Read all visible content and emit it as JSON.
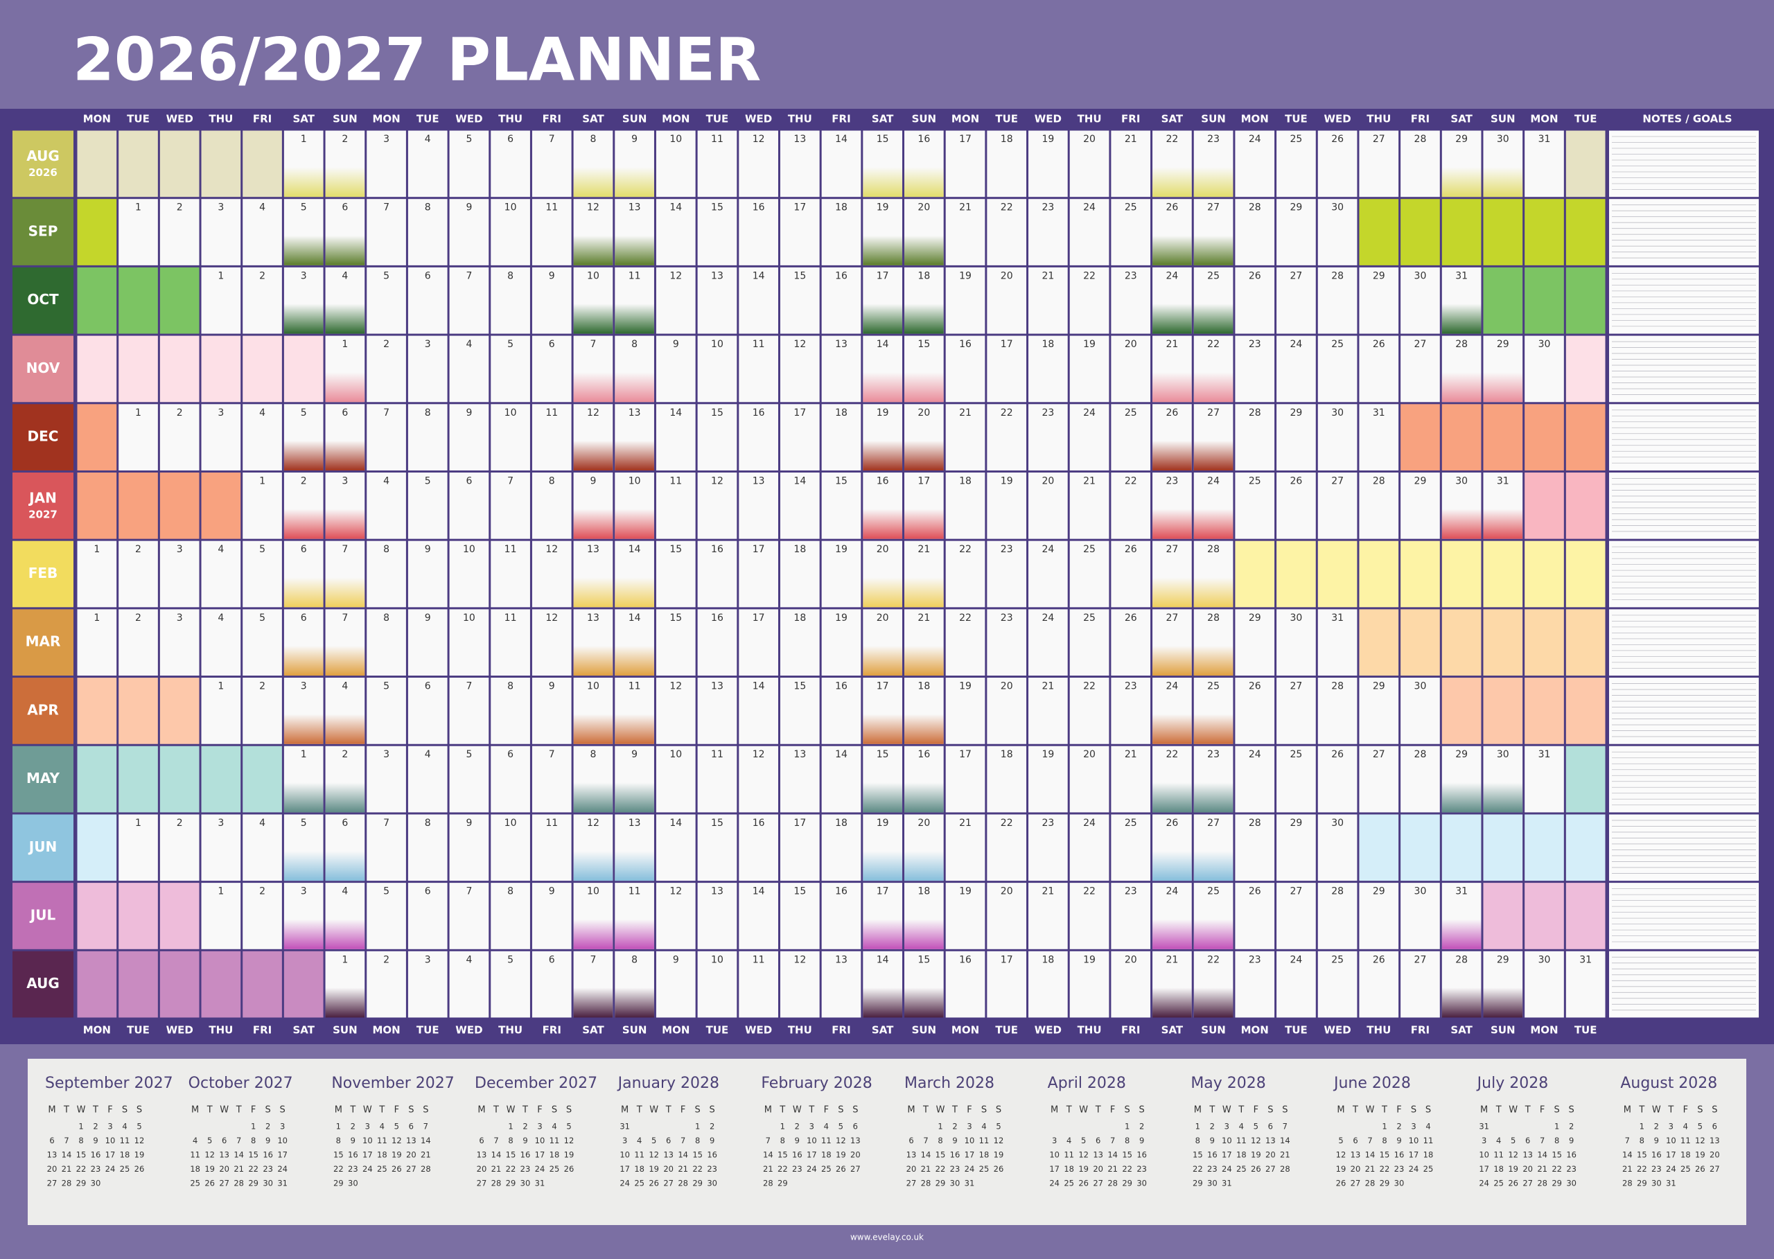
{
  "header": {
    "title": "2026/2027 PLANNER",
    "notes_title": "NOTES / GOALS",
    "weekdays": [
      "MON",
      "TUE",
      "WED",
      "THU",
      "FRI",
      "SAT",
      "SUN",
      "MON",
      "TUE",
      "WED",
      "THU",
      "FRI",
      "SAT",
      "SUN",
      "MON",
      "TUE",
      "WED",
      "THU",
      "FRI",
      "SAT",
      "SUN",
      "MON",
      "TUE",
      "WED",
      "THU",
      "FRI",
      "SAT",
      "SUN",
      "MON",
      "TUE",
      "WED",
      "THU",
      "FRI",
      "SAT",
      "SUN",
      "MON",
      "TUE"
    ]
  },
  "months": [
    {
      "label": "AUG",
      "year": "2026",
      "color": "#cdc861",
      "fill": "#e6e2c3",
      "accent": "#e2dc6c",
      "days": [
        null,
        null,
        null,
        null,
        null,
        1,
        2,
        3,
        4,
        5,
        6,
        7,
        8,
        9,
        10,
        11,
        12,
        13,
        14,
        15,
        16,
        17,
        18,
        19,
        20,
        21,
        22,
        23,
        24,
        25,
        26,
        27,
        28,
        29,
        30,
        31,
        null
      ]
    },
    {
      "label": "SEP",
      "color": "#6a8c39",
      "fill": "#c4d62b",
      "accent": "#5b7c2b",
      "days": [
        null,
        1,
        2,
        3,
        4,
        5,
        6,
        7,
        8,
        9,
        10,
        11,
        12,
        13,
        14,
        15,
        16,
        17,
        18,
        19,
        20,
        21,
        22,
        23,
        24,
        25,
        26,
        27,
        28,
        29,
        30,
        null,
        null,
        null,
        null,
        null,
        null
      ]
    },
    {
      "label": "OCT",
      "color": "#2f6a30",
      "fill": "#7cc463",
      "accent": "#2f6a30",
      "days": [
        null,
        null,
        null,
        1,
        2,
        3,
        4,
        5,
        6,
        7,
        8,
        9,
        10,
        11,
        12,
        13,
        14,
        15,
        16,
        17,
        18,
        19,
        20,
        21,
        22,
        23,
        24,
        25,
        26,
        27,
        28,
        29,
        30,
        31,
        null,
        null,
        null
      ]
    },
    {
      "label": "NOV",
      "color": "#e08c97",
      "fill": "#fde0e7",
      "accent": "#e98c9a",
      "days": [
        null,
        null,
        null,
        null,
        null,
        null,
        1,
        2,
        3,
        4,
        5,
        6,
        7,
        8,
        9,
        10,
        11,
        12,
        13,
        14,
        15,
        16,
        17,
        18,
        19,
        20,
        21,
        22,
        23,
        24,
        25,
        26,
        27,
        28,
        29,
        30,
        null
      ]
    },
    {
      "label": "DEC",
      "color": "#a1331f",
      "fill": "#f8a27f",
      "accent": "#a1331f",
      "days": [
        null,
        1,
        2,
        3,
        4,
        5,
        6,
        7,
        8,
        9,
        10,
        11,
        12,
        13,
        14,
        15,
        16,
        17,
        18,
        19,
        20,
        21,
        22,
        23,
        24,
        25,
        26,
        27,
        28,
        29,
        30,
        31,
        null,
        null,
        null,
        null,
        null
      ]
    },
    {
      "label": "JAN",
      "year": "2027",
      "color": "#d9565b",
      "fill": "#f8a27f",
      "fill_end": "#f9b6c1",
      "accent": "#de5058",
      "days": [
        null,
        null,
        null,
        null,
        1,
        2,
        3,
        4,
        5,
        6,
        7,
        8,
        9,
        10,
        11,
        12,
        13,
        14,
        15,
        16,
        17,
        18,
        19,
        20,
        21,
        22,
        23,
        24,
        25,
        26,
        27,
        28,
        29,
        30,
        31,
        null,
        null
      ]
    },
    {
      "label": "FEB",
      "color": "#f2dc5e",
      "fill": "#fdf3a5",
      "accent": "#efcf5c",
      "days": [
        1,
        2,
        3,
        4,
        5,
        6,
        7,
        8,
        9,
        10,
        11,
        12,
        13,
        14,
        15,
        16,
        17,
        18,
        19,
        20,
        21,
        22,
        23,
        24,
        25,
        26,
        27,
        28,
        null,
        null,
        null,
        null,
        null,
        null,
        null,
        null,
        null
      ]
    },
    {
      "label": "MAR",
      "color": "#d99a46",
      "fill": "#fdd9a8",
      "accent": "#e0a040",
      "days": [
        1,
        2,
        3,
        4,
        5,
        6,
        7,
        8,
        9,
        10,
        11,
        12,
        13,
        14,
        15,
        16,
        17,
        18,
        19,
        20,
        21,
        22,
        23,
        24,
        25,
        26,
        27,
        28,
        29,
        30,
        31,
        null,
        null,
        null,
        null,
        null,
        null
      ]
    },
    {
      "label": "APR",
      "color": "#cc6e3a",
      "fill": "#fdc8aa",
      "accent": "#cc6e3a",
      "days": [
        null,
        null,
        null,
        1,
        2,
        3,
        4,
        5,
        6,
        7,
        8,
        9,
        10,
        11,
        12,
        13,
        14,
        15,
        16,
        17,
        18,
        19,
        20,
        21,
        22,
        23,
        24,
        25,
        26,
        27,
        28,
        29,
        30,
        null,
        null,
        null,
        null
      ]
    },
    {
      "label": "MAY",
      "color": "#6f9c96",
      "fill": "#b3e0da",
      "accent": "#5d8a85",
      "days": [
        null,
        null,
        null,
        null,
        null,
        1,
        2,
        3,
        4,
        5,
        6,
        7,
        8,
        9,
        10,
        11,
        12,
        13,
        14,
        15,
        16,
        17,
        18,
        19,
        20,
        21,
        22,
        23,
        24,
        25,
        26,
        27,
        28,
        29,
        30,
        31,
        null
      ]
    },
    {
      "label": "JUN",
      "color": "#8fc5df",
      "fill": "#d5eef9",
      "accent": "#86bedb",
      "days": [
        null,
        1,
        2,
        3,
        4,
        5,
        6,
        7,
        8,
        9,
        10,
        11,
        12,
        13,
        14,
        15,
        16,
        17,
        18,
        19,
        20,
        21,
        22,
        23,
        24,
        25,
        26,
        27,
        28,
        29,
        30,
        null,
        null,
        null,
        null,
        null,
        null
      ]
    },
    {
      "label": "JUL",
      "color": "#c070b5",
      "fill": "#eebcda",
      "accent": "#c251b9",
      "days": [
        null,
        null,
        null,
        1,
        2,
        3,
        4,
        5,
        6,
        7,
        8,
        9,
        10,
        11,
        12,
        13,
        14,
        15,
        16,
        17,
        18,
        19,
        20,
        21,
        22,
        23,
        24,
        25,
        26,
        27,
        28,
        29,
        30,
        31,
        null,
        null,
        null
      ]
    },
    {
      "label": "AUG",
      "color": "#5a2650",
      "fill": "#c98bc1",
      "accent": "#4a2040",
      "days": [
        null,
        null,
        null,
        null,
        null,
        null,
        1,
        2,
        3,
        4,
        5,
        6,
        7,
        8,
        9,
        10,
        11,
        12,
        13,
        14,
        15,
        16,
        17,
        18,
        19,
        20,
        21,
        22,
        23,
        24,
        25,
        26,
        27,
        28,
        29,
        30,
        31
      ]
    }
  ],
  "mini": {
    "weekdays": [
      "M",
      "T",
      "W",
      "T",
      "F",
      "S",
      "S"
    ],
    "calendars": [
      {
        "title": "September 2027",
        "weeks": [
          [
            null,
            null,
            1,
            2,
            3,
            4,
            5
          ],
          [
            6,
            7,
            8,
            9,
            10,
            11,
            12
          ],
          [
            13,
            14,
            15,
            16,
            17,
            18,
            19
          ],
          [
            20,
            21,
            22,
            23,
            24,
            25,
            26
          ],
          [
            27,
            28,
            29,
            30
          ]
        ]
      },
      {
        "title": "October 2027",
        "weeks": [
          [
            null,
            null,
            null,
            null,
            1,
            2,
            3
          ],
          [
            4,
            5,
            6,
            7,
            8,
            9,
            10
          ],
          [
            11,
            12,
            13,
            14,
            15,
            16,
            17
          ],
          [
            18,
            19,
            20,
            21,
            22,
            23,
            24
          ],
          [
            25,
            26,
            27,
            28,
            29,
            30,
            31
          ]
        ]
      },
      {
        "title": "November 2027",
        "weeks": [
          [
            1,
            2,
            3,
            4,
            5,
            6,
            7
          ],
          [
            8,
            9,
            10,
            11,
            12,
            13,
            14
          ],
          [
            15,
            16,
            17,
            18,
            19,
            20,
            21
          ],
          [
            22,
            23,
            24,
            25,
            26,
            27,
            28
          ],
          [
            29,
            30
          ]
        ]
      },
      {
        "title": "December 2027",
        "weeks": [
          [
            null,
            null,
            1,
            2,
            3,
            4,
            5
          ],
          [
            6,
            7,
            8,
            9,
            10,
            11,
            12
          ],
          [
            13,
            14,
            15,
            16,
            17,
            18,
            19
          ],
          [
            20,
            21,
            22,
            23,
            24,
            25,
            26
          ],
          [
            27,
            28,
            29,
            30,
            31
          ]
        ]
      },
      {
        "title": "January 2028",
        "weeks": [
          [
            31,
            null,
            null,
            null,
            null,
            1,
            2
          ],
          [
            3,
            4,
            5,
            6,
            7,
            8,
            9
          ],
          [
            10,
            11,
            12,
            13,
            14,
            15,
            16
          ],
          [
            17,
            18,
            19,
            20,
            21,
            22,
            23
          ],
          [
            24,
            25,
            26,
            27,
            28,
            29,
            30
          ]
        ]
      },
      {
        "title": "February 2028",
        "weeks": [
          [
            null,
            1,
            2,
            3,
            4,
            5,
            6
          ],
          [
            7,
            8,
            9,
            10,
            11,
            12,
            13
          ],
          [
            14,
            15,
            16,
            17,
            18,
            19,
            20
          ],
          [
            21,
            22,
            23,
            24,
            25,
            26,
            27
          ],
          [
            28,
            29
          ]
        ]
      },
      {
        "title": "March 2028",
        "weeks": [
          [
            null,
            null,
            1,
            2,
            3,
            4,
            5
          ],
          [
            6,
            7,
            8,
            9,
            10,
            11,
            12
          ],
          [
            13,
            14,
            15,
            16,
            17,
            18,
            19
          ],
          [
            20,
            21,
            22,
            23,
            24,
            25,
            26
          ],
          [
            27,
            28,
            29,
            30,
            31
          ]
        ]
      },
      {
        "title": "April 2028",
        "weeks": [
          [
            null,
            null,
            null,
            null,
            null,
            1,
            2
          ],
          [
            3,
            4,
            5,
            6,
            7,
            8,
            9
          ],
          [
            10,
            11,
            12,
            13,
            14,
            15,
            16
          ],
          [
            17,
            18,
            19,
            20,
            21,
            22,
            23
          ],
          [
            24,
            25,
            26,
            27,
            28,
            29,
            30
          ]
        ]
      },
      {
        "title": "May 2028",
        "weeks": [
          [
            1,
            2,
            3,
            4,
            5,
            6,
            7
          ],
          [
            8,
            9,
            10,
            11,
            12,
            13,
            14
          ],
          [
            15,
            16,
            17,
            18,
            19,
            20,
            21
          ],
          [
            22,
            23,
            24,
            25,
            26,
            27,
            28
          ],
          [
            29,
            30,
            31
          ]
        ]
      },
      {
        "title": "June 2028",
        "weeks": [
          [
            null,
            null,
            null,
            1,
            2,
            3,
            4
          ],
          [
            5,
            6,
            7,
            8,
            9,
            10,
            11
          ],
          [
            12,
            13,
            14,
            15,
            16,
            17,
            18
          ],
          [
            19,
            20,
            21,
            22,
            23,
            24,
            25
          ],
          [
            26,
            27,
            28,
            29,
            30
          ]
        ]
      },
      {
        "title": "July 2028",
        "weeks": [
          [
            31,
            null,
            null,
            null,
            null,
            1,
            2
          ],
          [
            3,
            4,
            5,
            6,
            7,
            8,
            9
          ],
          [
            10,
            11,
            12,
            13,
            14,
            15,
            16
          ],
          [
            17,
            18,
            19,
            20,
            21,
            22,
            23
          ],
          [
            24,
            25,
            26,
            27,
            28,
            29,
            30
          ]
        ]
      },
      {
        "title": "August 2028",
        "weeks": [
          [
            null,
            1,
            2,
            3,
            4,
            5,
            6
          ],
          [
            7,
            8,
            9,
            10,
            11,
            12,
            13
          ],
          [
            14,
            15,
            16,
            17,
            18,
            19,
            20
          ],
          [
            21,
            22,
            23,
            24,
            25,
            26,
            27
          ],
          [
            28,
            29,
            30,
            31
          ]
        ]
      }
    ]
  },
  "footer": "www.evelay.co.uk"
}
